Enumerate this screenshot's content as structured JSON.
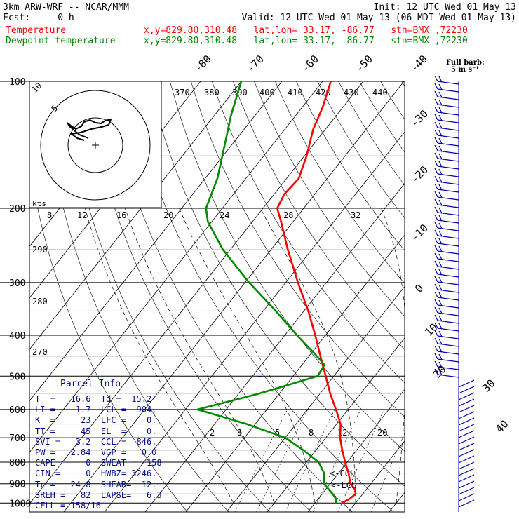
{
  "header": {
    "model": "3km ARW-WRF -- NCAR/MMM",
    "init": "Init: 12 UTC Wed 01 May 13",
    "fcst": "Fcst:     0 h",
    "valid": "Valid: 12 UTC Wed 01 May 13 (06 MDT Wed 01 May 13)",
    "temperature_label": "Temperature",
    "dewpoint_label": "Dewpoint temperature",
    "temperature_loc": "x,y=829.80,310.48   lat,lon= 33.17, -86.77   stn=BMX ,72230",
    "dewpoint_loc": "x,y=829.80,310.48   lat,lon= 33.17, -86.77   stn=BMX ,72230"
  },
  "colors": {
    "temperature": "#ff0000",
    "dewpoint": "#008a00",
    "wind_barb": "#0000aa",
    "parcel_info": "#000c8c"
  },
  "barb_legend": {
    "line1": "Full barb:",
    "line2": "5 m s⁻¹"
  },
  "hodograph": {
    "ring_labels": [
      "5",
      "10"
    ],
    "units": "kts",
    "axis_ticks": [
      "8",
      "12",
      "16",
      "20",
      "24",
      "28",
      "32"
    ]
  },
  "chart_data": {
    "type": "line",
    "title": "",
    "chart_kind": "skew-T log-p",
    "y_axis": "pressure (hPa), log scale",
    "pressure_levels": [
      100,
      200,
      300,
      400,
      500,
      600,
      700,
      800,
      900,
      1000
    ],
    "isotherm_labels": [
      "-80",
      "-70",
      "-60",
      "-50",
      "-40",
      "-30",
      "-20",
      "-10",
      "0",
      "10",
      "20",
      "30",
      "40"
    ],
    "theta_labels_top": [
      "370",
      "380",
      "390",
      "400",
      "410",
      "420",
      "430",
      "440"
    ],
    "theta_labels_left": [
      "290",
      "280",
      "270"
    ],
    "mixing_ratio_labels": [
      "2",
      "3",
      "5",
      "8",
      "12",
      "20"
    ],
    "series": [
      {
        "name": "Temperature",
        "color": "#ff0000",
        "points": [
          {
            "p": 1000,
            "t": 16.6
          },
          {
            "p": 975,
            "t": 17.8
          },
          {
            "p": 950,
            "t": 18.2
          },
          {
            "p": 925,
            "t": 17.0
          },
          {
            "p": 900,
            "t": 15.0
          },
          {
            "p": 850,
            "t": 12.5
          },
          {
            "p": 800,
            "t": 9.5
          },
          {
            "p": 750,
            "t": 6.5
          },
          {
            "p": 700,
            "t": 3.5
          },
          {
            "p": 650,
            "t": 1.0
          },
          {
            "p": 600,
            "t": -3.0
          },
          {
            "p": 550,
            "t": -7.5
          },
          {
            "p": 500,
            "t": -12.0
          },
          {
            "p": 450,
            "t": -17.0
          },
          {
            "p": 400,
            "t": -22.5
          },
          {
            "p": 350,
            "t": -29.0
          },
          {
            "p": 300,
            "t": -37.0
          },
          {
            "p": 250,
            "t": -46.0
          },
          {
            "p": 215,
            "t": -53.0
          },
          {
            "p": 200,
            "t": -56.5
          },
          {
            "p": 185,
            "t": -57.5
          },
          {
            "p": 170,
            "t": -57.0
          },
          {
            "p": 150,
            "t": -59.5
          },
          {
            "p": 130,
            "t": -63.0
          },
          {
            "p": 115,
            "t": -65.0
          },
          {
            "p": 100,
            "t": -68.0
          }
        ]
      },
      {
        "name": "Dewpoint temperature",
        "color": "#008a00",
        "points": [
          {
            "p": 1000,
            "t": 15.2
          },
          {
            "p": 975,
            "t": 14.2
          },
          {
            "p": 950,
            "t": 12.5
          },
          {
            "p": 925,
            "t": 10.5
          },
          {
            "p": 900,
            "t": 8.5
          },
          {
            "p": 850,
            "t": 6.5
          },
          {
            "p": 800,
            "t": 3.0
          },
          {
            "p": 750,
            "t": -3.0
          },
          {
            "p": 700,
            "t": -10.0
          },
          {
            "p": 650,
            "t": -22.0
          },
          {
            "p": 600,
            "t": -37.0
          },
          {
            "p": 550,
            "t": -25.0
          },
          {
            "p": 500,
            "t": -14.0
          },
          {
            "p": 470,
            "t": -14.5
          },
          {
            "p": 440,
            "t": -19.5
          },
          {
            "p": 400,
            "t": -27.0
          },
          {
            "p": 350,
            "t": -37.0
          },
          {
            "p": 300,
            "t": -49.0
          },
          {
            "p": 250,
            "t": -62.0
          },
          {
            "p": 215,
            "t": -71.0
          },
          {
            "p": 200,
            "t": -74.0
          },
          {
            "p": 170,
            "t": -77.0
          },
          {
            "p": 140,
            "t": -82.0
          },
          {
            "p": 120,
            "t": -86.0
          },
          {
            "p": 100,
            "t": -90.0
          }
        ]
      }
    ],
    "annotations": [
      "<-CCL",
      "<-LCL"
    ],
    "grid": true
  },
  "parcel_info": {
    "title": "Parcel Info",
    "rows": [
      "T  =   16.6  Td =  15.2",
      "LI =    1.7  LCL =  904.",
      "K  =     23  LFC =    0.",
      "TT =     45  EL  =    0.",
      "SVI =   3.2  CCL =  846.",
      "PW =   2.84  VGP =   0.0",
      "CAPE =    0  SWEAT=   158",
      "CIN =     0  HWBZ= 3246.",
      "Tc =   24.8  SHEAR=  12.",
      "SREH =   82  LAPSE=   6.3",
      "CELL = 158/16"
    ]
  }
}
